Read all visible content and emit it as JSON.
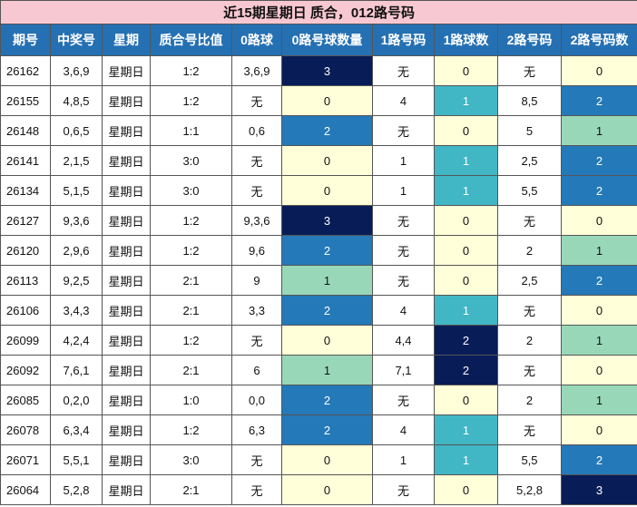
{
  "title": "近15期星期日 质合，012路号码",
  "table": {
    "columns": [
      "期号",
      "中奖号",
      "星期",
      "质合号比值",
      "0路球",
      "0路号球数量",
      "1路号码",
      "1路球数",
      "2路号码",
      "2路号码数"
    ],
    "rows": [
      [
        "26162",
        "3,6,9",
        "星期日",
        "1:2",
        "3,6,9",
        3,
        "无",
        0,
        "无",
        0
      ],
      [
        "26155",
        "4,8,5",
        "星期日",
        "1:2",
        "无",
        0,
        "4",
        1,
        "8,5",
        2
      ],
      [
        "26148",
        "0,6,5",
        "星期日",
        "1:1",
        "0,6",
        2,
        "无",
        0,
        "5",
        1
      ],
      [
        "26141",
        "2,1,5",
        "星期日",
        "3:0",
        "无",
        0,
        "1",
        1,
        "2,5",
        2
      ],
      [
        "26134",
        "5,1,5",
        "星期日",
        "3:0",
        "无",
        0,
        "1",
        1,
        "5,5",
        2
      ],
      [
        "26127",
        "9,3,6",
        "星期日",
        "1:2",
        "9,3,6",
        3,
        "无",
        0,
        "无",
        0
      ],
      [
        "26120",
        "2,9,6",
        "星期日",
        "1:2",
        "9,6",
        2,
        "无",
        0,
        "2",
        1
      ],
      [
        "26113",
        "9,2,5",
        "星期日",
        "2:1",
        "9",
        1,
        "无",
        0,
        "2,5",
        2
      ],
      [
        "26106",
        "3,4,3",
        "星期日",
        "2:1",
        "3,3",
        2,
        "4",
        1,
        "无",
        0
      ],
      [
        "26099",
        "4,2,4",
        "星期日",
        "1:2",
        "无",
        0,
        "4,4",
        2,
        "2",
        1
      ],
      [
        "26092",
        "7,6,1",
        "星期日",
        "2:1",
        "6",
        1,
        "7,1",
        2,
        "无",
        0
      ],
      [
        "26085",
        "0,2,0",
        "星期日",
        "1:0",
        "0,0",
        2,
        "无",
        0,
        "2",
        1
      ],
      [
        "26078",
        "6,3,4",
        "星期日",
        "1:2",
        "6,3",
        2,
        "4",
        1,
        "无",
        0
      ],
      [
        "26071",
        "5,5,1",
        "星期日",
        "3:0",
        "无",
        0,
        "1",
        1,
        "5,5",
        2
      ],
      [
        "26064",
        "5,2,8",
        "星期日",
        "2:1",
        "无",
        0,
        "无",
        0,
        "5,2,8",
        3
      ]
    ]
  }
}
